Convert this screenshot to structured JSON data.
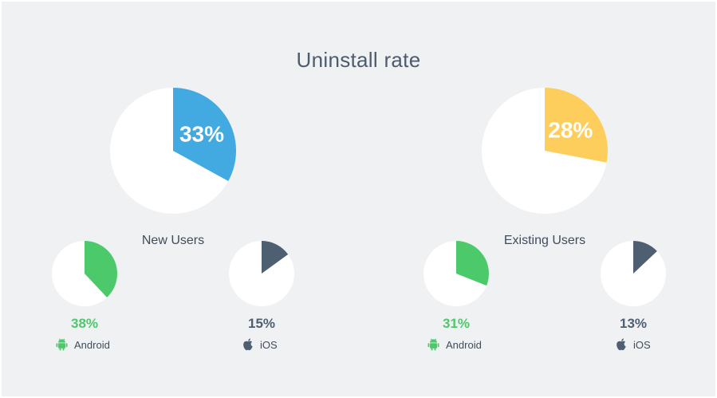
{
  "title": "Uninstall rate",
  "colors": {
    "background": "#eff1f3",
    "pie_base": "#ffffff",
    "blue": "#42a9e1",
    "yellow": "#fece5d",
    "green": "#4cc96b",
    "slate": "#4e5f72",
    "text_dark": "#3f4d5c"
  },
  "groups": [
    {
      "label": "New Users",
      "overall": {
        "value_label": "33%",
        "value": 33,
        "color_key": "blue"
      },
      "platforms": [
        {
          "name": "Android",
          "icon": "android-icon",
          "value_label": "38%",
          "value": 38,
          "color_key": "green"
        },
        {
          "name": "iOS",
          "icon": "apple-icon",
          "value_label": "15%",
          "value": 15,
          "color_key": "slate"
        }
      ]
    },
    {
      "label": "Existing Users",
      "overall": {
        "value_label": "28%",
        "value": 28,
        "color_key": "yellow"
      },
      "platforms": [
        {
          "name": "Android",
          "icon": "android-icon",
          "value_label": "31%",
          "value": 31,
          "color_key": "green"
        },
        {
          "name": "iOS",
          "icon": "apple-icon",
          "value_label": "13%",
          "value": 13,
          "color_key": "slate"
        }
      ]
    }
  ],
  "chart_data": [
    {
      "type": "pie",
      "title": "New Users",
      "categories": [
        "Uninstalled"
      ],
      "values": [
        33
      ],
      "unit": "%"
    },
    {
      "type": "pie",
      "title": "New Users",
      "categories": [
        "Android"
      ],
      "values": [
        38
      ],
      "unit": "%"
    },
    {
      "type": "pie",
      "title": "New Users",
      "categories": [
        "iOS"
      ],
      "values": [
        15
      ],
      "unit": "%"
    },
    {
      "type": "pie",
      "title": "Existing Users",
      "categories": [
        "Uninstalled"
      ],
      "values": [
        28
      ],
      "unit": "%"
    },
    {
      "type": "pie",
      "title": "Existing Users",
      "categories": [
        "Android"
      ],
      "values": [
        31
      ],
      "unit": "%"
    },
    {
      "type": "pie",
      "title": "Existing Users",
      "categories": [
        "iOS"
      ],
      "values": [
        13
      ],
      "unit": "%"
    }
  ]
}
